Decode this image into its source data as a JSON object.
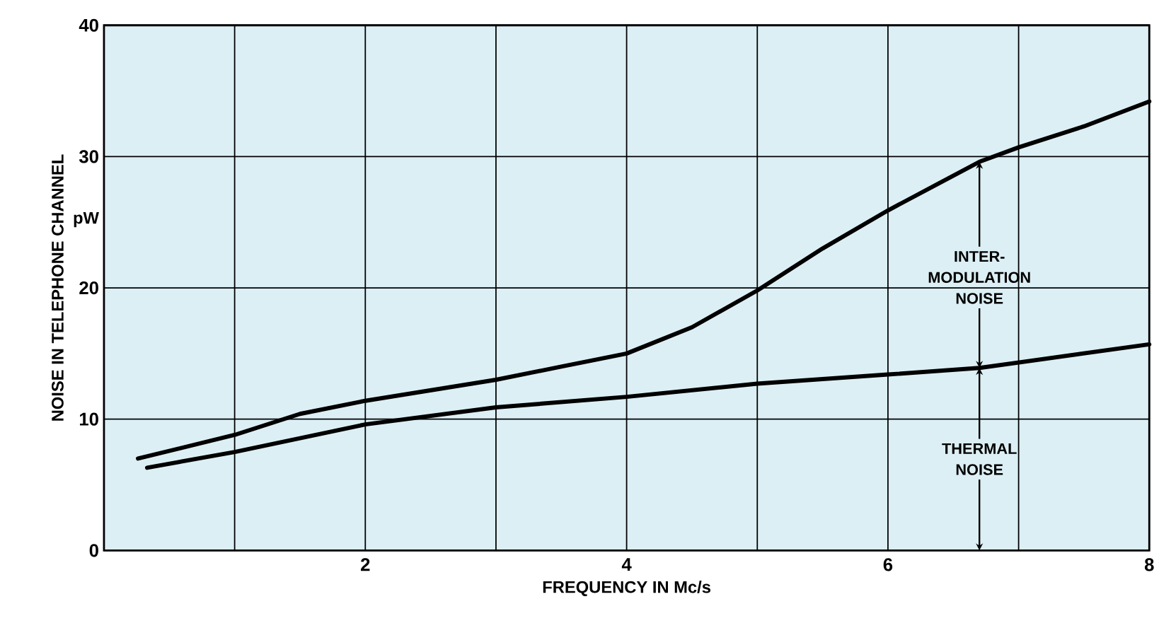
{
  "chart_data": {
    "type": "line",
    "xlabel": "FREQUENCY IN Mc/s",
    "ylabel": "NOISE IN TELEPHONE CHANNEL",
    "series": [
      {
        "color": "#000000",
        "x": [
          0.26,
          1,
          1.5,
          2,
          3,
          3.5,
          4,
          4.5,
          5,
          5.5,
          6,
          6.7,
          7,
          7.5,
          8
        ],
        "values": [
          7.0,
          8.8,
          10.4,
          11.4,
          13.0,
          14.0,
          15.0,
          17.0,
          19.8,
          23.0,
          25.9,
          29.6,
          30.7,
          32.3,
          34.2
        ]
      },
      {
        "color": "#000000",
        "x": [
          0.33,
          1,
          2,
          3,
          4,
          5,
          6,
          6.7,
          8
        ],
        "values": [
          6.3,
          7.5,
          9.6,
          10.9,
          11.7,
          12.7,
          13.4,
          13.9,
          15.7
        ]
      }
    ],
    "xlim": [
      0,
      8
    ],
    "ylim": [
      0,
      40
    ],
    "xticks": [
      {
        "value": 1,
        "label": null
      },
      2,
      {
        "value": 3,
        "label": null
      },
      4,
      {
        "value": 5,
        "label": null
      },
      6,
      {
        "value": 7,
        "label": null
      },
      8
    ],
    "yticks": [
      0,
      10,
      20,
      30,
      40
    ],
    "grid": true,
    "line_style": "solid",
    "marker": "none",
    "annotations": [
      "pW",
      {
        "text": "INTER-MODULATION NOISE",
        "x": 6.7,
        "y": 29.6
      },
      {
        "text": "THERMAL NOISE",
        "x": 6.7,
        "y": 13.9
      }
    ]
  }
}
